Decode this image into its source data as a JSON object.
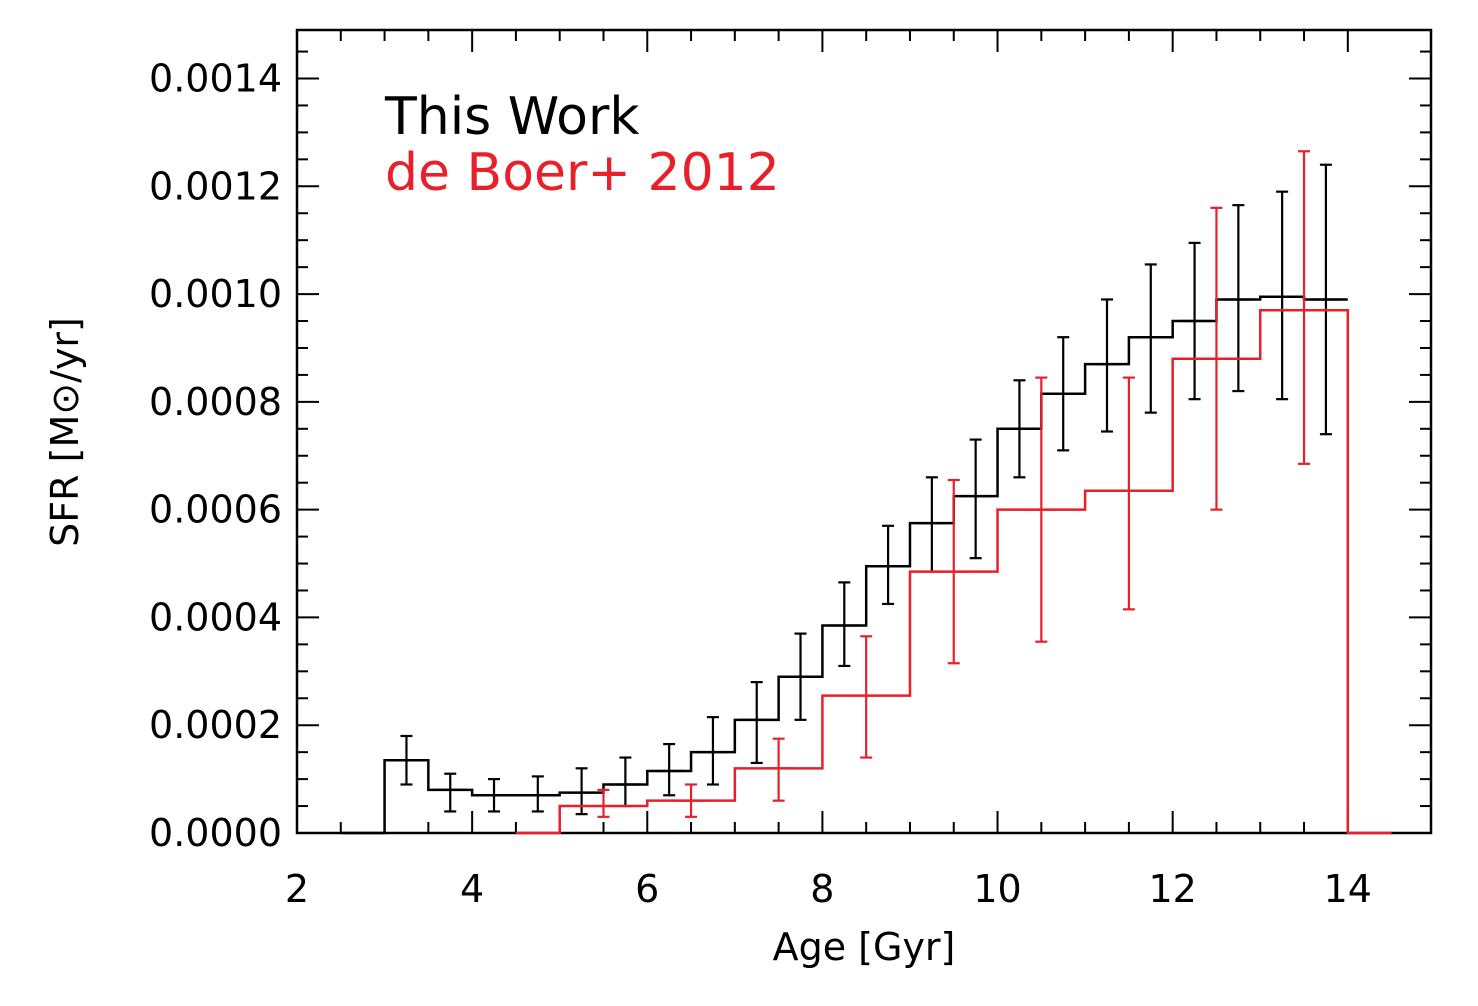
{
  "chart_data": {
    "type": "line",
    "title": "",
    "xlabel": "Age [Gyr]",
    "ylabel": "SFR [M⊙/yr]",
    "xlim": [
      2,
      14.95
    ],
    "ylim": [
      0,
      0.00149
    ],
    "xticks": [
      "2",
      "4",
      "6",
      "8",
      "10",
      "12",
      "14"
    ],
    "yticks": [
      "0.0000",
      "0.0002",
      "0.0004",
      "0.0006",
      "0.0008",
      "0.0010",
      "0.0012",
      "0.0014"
    ],
    "grid": false,
    "legend_position": "top-left",
    "series": [
      {
        "name": "This Work",
        "color": "#000000",
        "step_edges": [
          2.5,
          3.0,
          3.5,
          4.0,
          4.5,
          5.0,
          5.5,
          6.0,
          6.5,
          7.0,
          7.5,
          8.0,
          8.5,
          9.0,
          9.5,
          10.0,
          10.5,
          11.0,
          11.5,
          12.0,
          12.5,
          13.0,
          13.5,
          14.0
        ],
        "step_values": [
          0.0,
          0.000135,
          8e-05,
          7e-05,
          7e-05,
          7.5e-05,
          9e-05,
          0.000115,
          0.00015,
          0.00021,
          0.00029,
          0.000385,
          0.000495,
          0.000575,
          0.000625,
          0.00075,
          0.000815,
          0.00087,
          0.00092,
          0.00095,
          0.00099,
          0.000995,
          0.00099
        ],
        "error_bars": [
          {
            "x": 3.25,
            "y": 0.000135,
            "low": 9e-05,
            "high": 0.00018
          },
          {
            "x": 3.75,
            "y": 8e-05,
            "low": 4e-05,
            "high": 0.00011
          },
          {
            "x": 4.25,
            "y": 7e-05,
            "low": 4e-05,
            "high": 0.0001
          },
          {
            "x": 4.75,
            "y": 7e-05,
            "low": 4e-05,
            "high": 0.000105
          },
          {
            "x": 5.25,
            "y": 7.5e-05,
            "low": 3.5e-05,
            "high": 0.00012
          },
          {
            "x": 5.75,
            "y": 9e-05,
            "low": 5e-05,
            "high": 0.00014
          },
          {
            "x": 6.25,
            "y": 0.000115,
            "low": 7e-05,
            "high": 0.000165
          },
          {
            "x": 6.75,
            "y": 0.00015,
            "low": 9e-05,
            "high": 0.000215
          },
          {
            "x": 7.25,
            "y": 0.00021,
            "low": 0.00013,
            "high": 0.00028
          },
          {
            "x": 7.75,
            "y": 0.00029,
            "low": 0.00021,
            "high": 0.00037
          },
          {
            "x": 8.25,
            "y": 0.000385,
            "low": 0.00031,
            "high": 0.000465
          },
          {
            "x": 8.75,
            "y": 0.000495,
            "low": 0.000425,
            "high": 0.00057
          },
          {
            "x": 9.25,
            "y": 0.000575,
            "low": 0.000485,
            "high": 0.00066
          },
          {
            "x": 9.75,
            "y": 0.000625,
            "low": 0.00051,
            "high": 0.00073
          },
          {
            "x": 10.25,
            "y": 0.00075,
            "low": 0.00066,
            "high": 0.00084
          },
          {
            "x": 10.75,
            "y": 0.000815,
            "low": 0.00071,
            "high": 0.00092
          },
          {
            "x": 11.25,
            "y": 0.00087,
            "low": 0.000745,
            "high": 0.00099
          },
          {
            "x": 11.75,
            "y": 0.00092,
            "low": 0.00078,
            "high": 0.001055
          },
          {
            "x": 12.25,
            "y": 0.00095,
            "low": 0.000805,
            "high": 0.001095
          },
          {
            "x": 12.75,
            "y": 0.00099,
            "low": 0.00082,
            "high": 0.001165
          },
          {
            "x": 13.25,
            "y": 0.000995,
            "low": 0.000805,
            "high": 0.00119
          },
          {
            "x": 13.75,
            "y": 0.00099,
            "low": 0.00074,
            "high": 0.00124
          }
        ]
      },
      {
        "name": "de Boer+ 2012",
        "color": "#e8202a",
        "step_edges": [
          4.5,
          5.0,
          6.0,
          7.0,
          8.0,
          9.0,
          10.0,
          11.0,
          12.0,
          13.0,
          14.0,
          14.5
        ],
        "step_values": [
          0.0,
          5e-05,
          6e-05,
          0.00012,
          0.000255,
          0.000485,
          0.0006,
          0.000635,
          0.00088,
          0.00097,
          0.0
        ],
        "error_bars": [
          {
            "x": 5.5,
            "y": 5e-05,
            "low": 3e-05,
            "high": 8e-05
          },
          {
            "x": 6.5,
            "y": 6e-05,
            "low": 3e-05,
            "high": 9e-05
          },
          {
            "x": 7.5,
            "y": 0.00012,
            "low": 6e-05,
            "high": 0.000175
          },
          {
            "x": 8.5,
            "y": 0.000255,
            "low": 0.00014,
            "high": 0.000365
          },
          {
            "x": 9.5,
            "y": 0.000485,
            "low": 0.000315,
            "high": 0.000655
          },
          {
            "x": 10.5,
            "y": 0.0006,
            "low": 0.000355,
            "high": 0.000845
          },
          {
            "x": 11.5,
            "y": 0.000635,
            "low": 0.000415,
            "high": 0.000845
          },
          {
            "x": 12.5,
            "y": 0.00088,
            "low": 0.0006,
            "high": 0.00116
          },
          {
            "x": 13.5,
            "y": 0.00097,
            "low": 0.000685,
            "high": 0.001265
          }
        ]
      }
    ]
  }
}
